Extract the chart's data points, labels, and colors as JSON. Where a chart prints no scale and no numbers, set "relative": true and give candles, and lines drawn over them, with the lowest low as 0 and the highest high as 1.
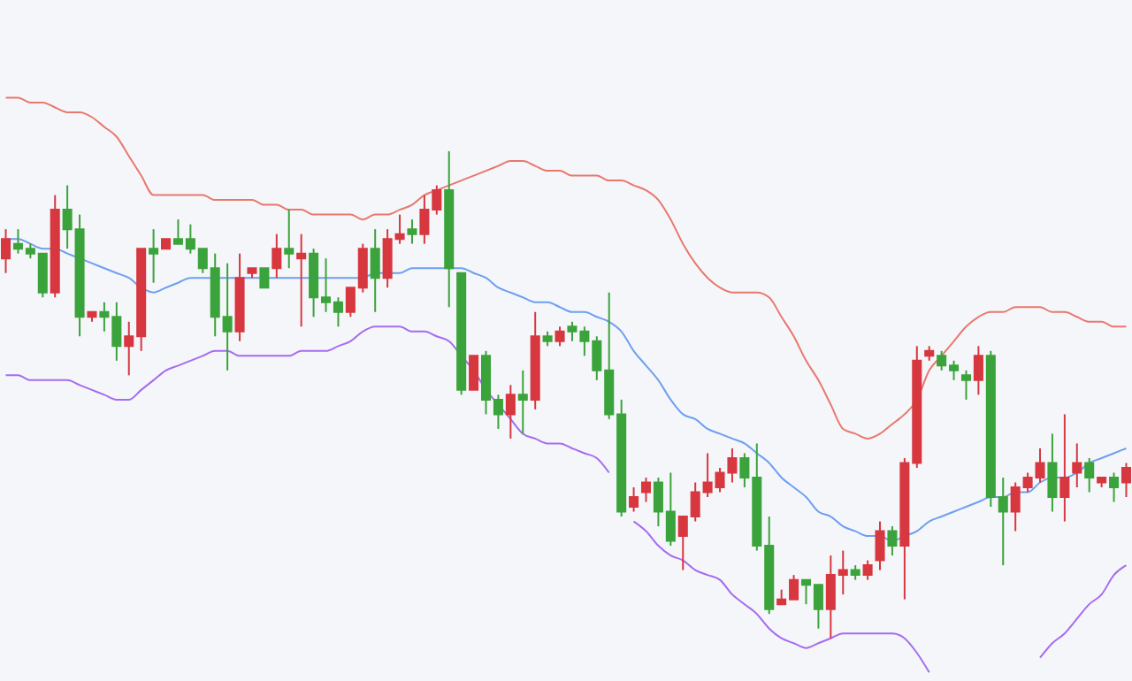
{
  "chart_data": {
    "type": "candlestick",
    "relative": true,
    "tick_labels": false,
    "categories": [
      null,
      null,
      null,
      null,
      null,
      null,
      null,
      null,
      null,
      null,
      null,
      null,
      null,
      null,
      null,
      null,
      null,
      null,
      null,
      null,
      null,
      null,
      null,
      null,
      null,
      null,
      null,
      null,
      null,
      null,
      null,
      null,
      null,
      null,
      null,
      null,
      null,
      null,
      null,
      null,
      null,
      null,
      null,
      null,
      null,
      null,
      null,
      null,
      null,
      null,
      null,
      null,
      null,
      null,
      null,
      null,
      null,
      null,
      null,
      null,
      null,
      null,
      null,
      null,
      null,
      null,
      null,
      null,
      null,
      null,
      null,
      null,
      null,
      null,
      null,
      null,
      null,
      null,
      null,
      null,
      null,
      null,
      null,
      null,
      null,
      null,
      null,
      null,
      null,
      null,
      null,
      null
    ],
    "ohlc": [
      [
        0.78,
        0.84,
        0.75,
        0.82
      ],
      [
        0.81,
        0.84,
        0.79,
        0.8
      ],
      [
        0.8,
        0.81,
        0.78,
        0.79
      ],
      [
        0.79,
        0.79,
        0.7,
        0.71
      ],
      [
        0.71,
        0.91,
        0.7,
        0.88
      ],
      [
        0.88,
        0.93,
        0.8,
        0.84
      ],
      [
        0.84,
        0.87,
        0.62,
        0.66
      ],
      [
        0.66,
        0.67,
        0.65,
        0.67
      ],
      [
        0.67,
        0.69,
        0.63,
        0.66
      ],
      [
        0.66,
        0.69,
        0.57,
        0.6
      ],
      [
        0.6,
        0.65,
        0.54,
        0.62
      ],
      [
        0.62,
        0.8,
        0.59,
        0.8
      ],
      [
        0.8,
        0.84,
        0.73,
        0.79
      ],
      [
        0.8,
        0.82,
        0.8,
        0.82
      ],
      [
        0.82,
        0.86,
        0.81,
        0.81
      ],
      [
        0.82,
        0.85,
        0.79,
        0.8
      ],
      [
        0.8,
        0.8,
        0.75,
        0.76
      ],
      [
        0.76,
        0.79,
        0.62,
        0.66
      ],
      [
        0.66,
        0.77,
        0.55,
        0.63
      ],
      [
        0.63,
        0.79,
        0.61,
        0.74
      ],
      [
        0.75,
        0.76,
        0.74,
        0.76
      ],
      [
        0.76,
        0.76,
        0.72,
        0.72
      ],
      [
        0.76,
        0.83,
        0.74,
        0.8
      ],
      [
        0.8,
        0.88,
        0.76,
        0.79
      ],
      [
        0.78,
        0.83,
        0.64,
        0.79
      ],
      [
        0.79,
        0.8,
        0.66,
        0.7
      ],
      [
        0.7,
        0.78,
        0.67,
        0.69
      ],
      [
        0.69,
        0.7,
        0.64,
        0.67
      ],
      [
        0.67,
        0.72,
        0.66,
        0.72
      ],
      [
        0.72,
        0.81,
        0.71,
        0.8
      ],
      [
        0.8,
        0.84,
        0.67,
        0.74
      ],
      [
        0.74,
        0.84,
        0.72,
        0.82
      ],
      [
        0.82,
        0.87,
        0.81,
        0.83
      ],
      [
        0.84,
        0.86,
        0.81,
        0.83
      ],
      [
        0.83,
        0.91,
        0.81,
        0.88
      ],
      [
        0.88,
        0.93,
        0.87,
        0.92
      ],
      [
        0.92,
        1,
        0.68,
        0.76
      ],
      [
        0.75,
        0.75,
        0.5,
        0.51
      ],
      [
        0.51,
        0.58,
        0.51,
        0.58
      ],
      [
        0.58,
        0.59,
        0.46,
        0.49
      ],
      [
        0.49,
        0.5,
        0.43,
        0.46
      ],
      [
        0.46,
        0.52,
        0.41,
        0.5
      ],
      [
        0.5,
        0.55,
        0.42,
        0.49
      ],
      [
        0.49,
        0.67,
        0.47,
        0.62
      ],
      [
        0.62,
        0.63,
        0.6,
        0.61
      ],
      [
        0.61,
        0.64,
        0.6,
        0.63
      ],
      [
        0.64,
        0.65,
        0.61,
        0.63
      ],
      [
        0.63,
        0.64,
        0.58,
        0.61
      ],
      [
        0.61,
        0.62,
        0.53,
        0.55
      ],
      [
        0.55,
        0.71,
        0.45,
        0.46
      ],
      [
        0.46,
        0.49,
        0.25,
        0.26
      ],
      [
        0.27,
        0.31,
        0.26,
        0.29
      ],
      [
        0.3,
        0.33,
        0.28,
        0.32
      ],
      [
        0.32,
        0.33,
        0.23,
        0.26
      ],
      [
        0.26,
        0.34,
        0.19,
        0.2
      ],
      [
        0.21,
        0.25,
        0.14,
        0.25
      ],
      [
        0.25,
        0.32,
        0.24,
        0.3
      ],
      [
        0.3,
        0.38,
        0.29,
        0.32
      ],
      [
        0.31,
        0.35,
        0.3,
        0.34
      ],
      [
        0.34,
        0.39,
        0.32,
        0.37
      ],
      [
        0.37,
        0.38,
        0.31,
        0.33
      ],
      [
        0.33,
        0.4,
        0.18,
        0.19
      ],
      [
        0.19,
        0.25,
        0.05,
        0.06
      ],
      [
        0.07,
        0.1,
        0.07,
        0.08
      ],
      [
        0.08,
        0.13,
        0.08,
        0.12
      ],
      [
        0.12,
        0.12,
        0.07,
        0.11
      ],
      [
        0.11,
        0.11,
        0.02,
        0.06
      ],
      [
        0.06,
        0.17,
        0,
        0.13
      ],
      [
        0.13,
        0.18,
        0.09,
        0.14
      ],
      [
        0.14,
        0.15,
        0.12,
        0.13
      ],
      [
        0.13,
        0.16,
        0.12,
        0.15
      ],
      [
        0.16,
        0.24,
        0.14,
        0.22
      ],
      [
        0.22,
        0.23,
        0.17,
        0.19
      ],
      [
        0.19,
        0.37,
        0.08,
        0.36
      ],
      [
        0.36,
        0.6,
        0.35,
        0.57
      ],
      [
        0.58,
        0.6,
        0.57,
        0.59
      ],
      [
        0.58,
        0.59,
        0.55,
        0.56
      ],
      [
        0.56,
        0.57,
        0.53,
        0.55
      ],
      [
        0.54,
        0.55,
        0.49,
        0.53
      ],
      [
        0.53,
        0.6,
        0.5,
        0.58
      ],
      [
        0.58,
        0.59,
        0.27,
        0.29
      ],
      [
        0.29,
        0.33,
        0.15,
        0.26
      ],
      [
        0.26,
        0.32,
        0.22,
        0.31
      ],
      [
        0.31,
        0.34,
        0.3,
        0.33
      ],
      [
        0.33,
        0.39,
        0.32,
        0.36
      ],
      [
        0.36,
        0.42,
        0.26,
        0.29
      ],
      [
        0.29,
        0.46,
        0.24,
        0.33
      ],
      [
        0.34,
        0.4,
        0.31,
        0.36
      ],
      [
        0.36,
        0.37,
        0.3,
        0.33
      ],
      [
        0.32,
        0.33,
        0.31,
        0.33
      ],
      [
        0.33,
        0.34,
        0.28,
        0.31
      ],
      [
        0.32,
        0.36,
        0.29,
        0.35
      ]
    ],
    "colors": [
      "#d7373f",
      "#3ba33b",
      "#3ba33b",
      "#3ba33b",
      "#d7373f",
      "#3ba33b",
      "#3ba33b",
      "#d7373f",
      "#3ba33b",
      "#3ba33b",
      "#d7373f",
      "#d7373f",
      "#3ba33b",
      "#d7373f",
      "#3ba33b",
      "#3ba33b",
      "#3ba33b",
      "#3ba33b",
      "#3ba33b",
      "#d7373f",
      "#d7373f",
      "#3ba33b",
      "#d7373f",
      "#3ba33b",
      "#d7373f",
      "#3ba33b",
      "#3ba33b",
      "#3ba33b",
      "#d7373f",
      "#d7373f",
      "#3ba33b",
      "#d7373f",
      "#d7373f",
      "#3ba33b",
      "#d7373f",
      "#d7373f",
      "#3ba33b",
      "#3ba33b",
      "#d7373f",
      "#3ba33b",
      "#3ba33b",
      "#d7373f",
      "#3ba33b",
      "#d7373f",
      "#3ba33b",
      "#d7373f",
      "#3ba33b",
      "#3ba33b",
      "#3ba33b",
      "#3ba33b",
      "#3ba33b",
      "#d7373f",
      "#d7373f",
      "#3ba33b",
      "#3ba33b",
      "#d7373f",
      "#d7373f",
      "#d7373f",
      "#d7373f",
      "#d7373f",
      "#3ba33b",
      "#3ba33b",
      "#3ba33b",
      "#d7373f",
      "#d7373f",
      "#3ba33b",
      "#3ba33b",
      "#d7373f",
      "#d7373f",
      "#3ba33b",
      "#d7373f",
      "#d7373f",
      "#3ba33b",
      "#d7373f",
      "#d7373f",
      "#d7373f",
      "#3ba33b",
      "#3ba33b",
      "#3ba33b",
      "#d7373f",
      "#3ba33b",
      "#3ba33b",
      "#d7373f",
      "#d7373f",
      "#d7373f",
      "#3ba33b",
      "#d7373f",
      "#d7373f",
      "#3ba33b",
      "#d7373f",
      "#3ba33b",
      "#d7373f"
    ],
    "series": [
      {
        "type": "line",
        "color": "#e8786e",
        "values": [
          1.11,
          1.11,
          1.1,
          1.1,
          1.09,
          1.08,
          1.08,
          1.07,
          1.05,
          1.03,
          0.99,
          0.95,
          0.91,
          0.91,
          0.91,
          0.91,
          0.91,
          0.9,
          0.9,
          0.9,
          0.9,
          0.89,
          0.89,
          0.88,
          0.88,
          0.87,
          0.87,
          0.87,
          0.87,
          0.86,
          0.87,
          0.87,
          0.88,
          0.89,
          0.91,
          0.92,
          0.93,
          0.94,
          0.95,
          0.96,
          0.97,
          0.98,
          0.98,
          0.97,
          0.96,
          0.96,
          0.95,
          0.95,
          0.95,
          0.94,
          0.94,
          0.93,
          0.92,
          0.9,
          0.86,
          0.81,
          0.77,
          0.74,
          0.72,
          0.71,
          0.71,
          0.71,
          0.7,
          0.66,
          0.62,
          0.57,
          0.53,
          0.48,
          0.43,
          0.42,
          0.41,
          0.42,
          0.44,
          0.46,
          0.49,
          0.55,
          0.58,
          0.61,
          0.64,
          0.66,
          0.67,
          0.67,
          0.68,
          0.68,
          0.68,
          0.67,
          0.67,
          0.66,
          0.65,
          0.65,
          0.64,
          0.64
        ]
      },
      {
        "type": "line",
        "color": "#6e9ff0",
        "values": [
          0.82,
          0.82,
          0.81,
          0.8,
          0.8,
          0.79,
          0.78,
          0.77,
          0.76,
          0.75,
          0.74,
          0.72,
          0.71,
          0.72,
          0.73,
          0.74,
          0.74,
          0.74,
          0.74,
          0.74,
          0.74,
          0.74,
          0.74,
          0.74,
          0.74,
          0.74,
          0.74,
          0.74,
          0.74,
          0.74,
          0.75,
          0.75,
          0.75,
          0.76,
          0.76,
          0.76,
          0.76,
          0.76,
          0.75,
          0.74,
          0.72,
          0.71,
          0.7,
          0.69,
          0.69,
          0.68,
          0.67,
          0.67,
          0.66,
          0.65,
          0.63,
          0.59,
          0.56,
          0.53,
          0.49,
          0.46,
          0.45,
          0.43,
          0.42,
          0.41,
          0.4,
          0.38,
          0.36,
          0.33,
          0.31,
          0.29,
          0.26,
          0.25,
          0.23,
          0.22,
          0.21,
          0.21,
          0.2,
          0.21,
          0.22,
          0.24,
          0.25,
          0.26,
          0.27,
          0.28,
          0.29,
          0.29,
          0.3,
          0.3,
          0.32,
          0.33,
          0.33,
          0.34,
          0.36,
          0.37,
          0.38,
          0.39
        ]
      },
      {
        "type": "line",
        "color": "#a56cf0",
        "values": [
          0.54,
          0.54,
          0.53,
          0.53,
          0.53,
          0.53,
          0.52,
          0.51,
          0.5,
          0.49,
          0.49,
          0.51,
          0.53,
          0.55,
          0.56,
          0.57,
          0.58,
          0.59,
          0.59,
          0.58,
          0.58,
          0.58,
          0.58,
          0.58,
          0.59,
          0.59,
          0.59,
          0.6,
          0.61,
          0.63,
          0.64,
          0.64,
          0.64,
          0.63,
          0.63,
          0.62,
          0.61,
          0.58,
          0.55,
          0.51,
          0.48,
          0.45,
          0.42,
          0.41,
          0.4,
          0.4,
          0.39,
          0.38,
          0.37,
          0.34,
          null,
          0.24,
          0.22,
          0.19,
          0.17,
          0.16,
          0.14,
          0.13,
          0.12,
          0.09,
          0.07,
          0.05,
          0.02,
          0.0,
          -0.01,
          -0.02,
          -0.01,
          0.0,
          0.01,
          0.01,
          0.01,
          0.01,
          0.01,
          0.0,
          -0.03,
          -0.07,
          null,
          null,
          null,
          null,
          null,
          null,
          null,
          null,
          -0.04,
          -0.01,
          0.01,
          0.04,
          0.07,
          0.09,
          0.13,
          0.15
        ]
      }
    ]
  }
}
